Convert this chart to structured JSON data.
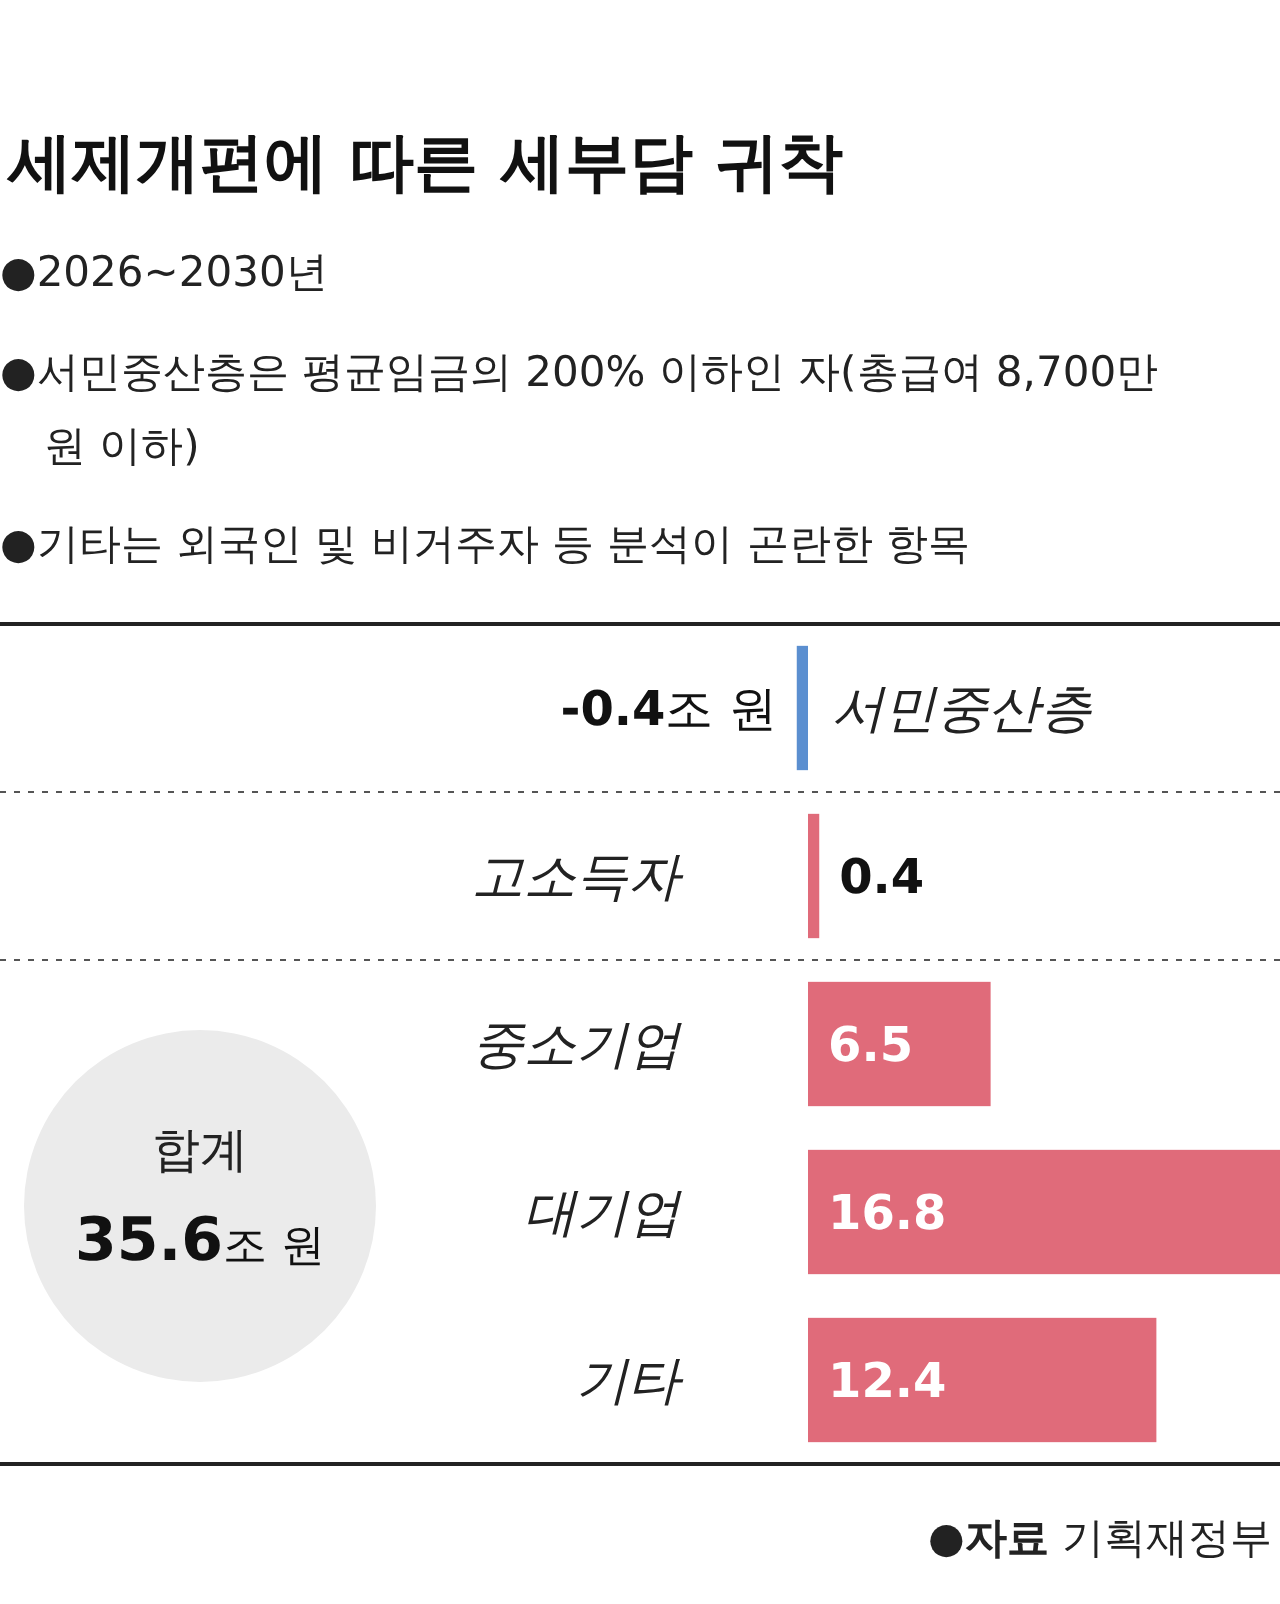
{
  "chart_data": {
    "type": "bar",
    "orientation": "horizontal",
    "title": "세제개편에 따른 세부담 귀착",
    "subtitle": "●2026~2030년",
    "categories": [
      "서민중산층",
      "고소득자",
      "중소기업",
      "대기업",
      "기타"
    ],
    "values": [
      -0.4,
      0.4,
      6.5,
      16.8,
      12.4
    ],
    "colors": [
      "#5b8fd0",
      "#e06b7a",
      "#e06b7a",
      "#e06b7a",
      "#e06b7a"
    ],
    "value_labels": [
      "-0.4조 원",
      "0.4",
      "6.5",
      "16.8",
      "12.4"
    ],
    "annotations": [
      "●서민중산층은 평균임금의 200% 이하인 자(총급여 8,700만 원 이하)",
      "●기타는 외국인 및 비거주자 등 분석이 곤란한 항목",
      "합계",
      "35.6조 원",
      "●자료 기획재정부"
    ]
  }
}
